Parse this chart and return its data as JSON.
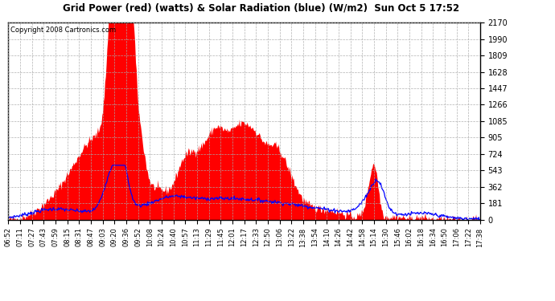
{
  "title": "Grid Power (red) (watts) & Solar Radiation (blue) (W/m2)  Sun Oct 5 17:52",
  "copyright": "Copyright 2008 Cartronics.com",
  "background_color": "#ffffff",
  "plot_bg_color": "#ffffff",
  "grid_color": "#aaaaaa",
  "y_ticks": [
    0.5,
    181.3,
    362.1,
    542.9,
    723.8,
    904.6,
    1085.4,
    1266.3,
    1447.1,
    1627.9,
    1808.8,
    1989.6,
    2170.4
  ],
  "y_min": 0.5,
  "y_max": 2170.4,
  "red_color": "#ff0000",
  "blue_color": "#0000ff",
  "x_labels": [
    "06:52",
    "07:11",
    "07:27",
    "07:43",
    "07:59",
    "08:15",
    "08:31",
    "08:47",
    "09:03",
    "09:20",
    "09:36",
    "09:52",
    "10:08",
    "10:24",
    "10:40",
    "10:57",
    "11:13",
    "11:29",
    "11:45",
    "12:01",
    "12:17",
    "12:33",
    "12:50",
    "13:06",
    "13:22",
    "13:38",
    "13:54",
    "14:10",
    "14:26",
    "14:42",
    "14:58",
    "15:14",
    "15:30",
    "15:46",
    "16:02",
    "16:18",
    "16:34",
    "16:50",
    "17:06",
    "17:22",
    "17:38"
  ]
}
